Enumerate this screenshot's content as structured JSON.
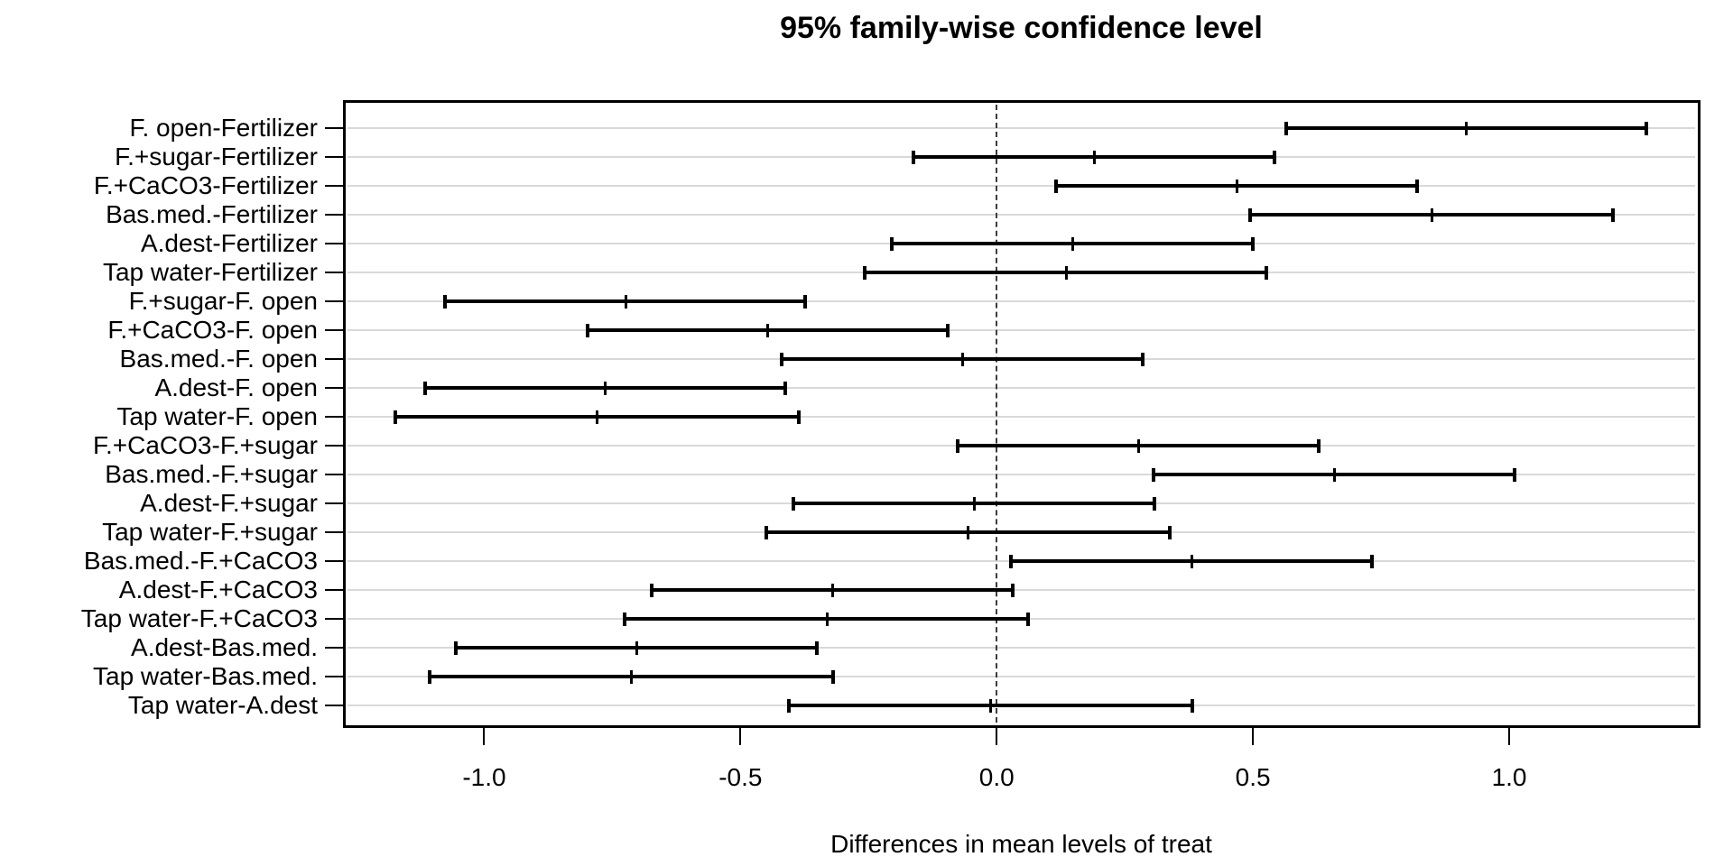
{
  "page": {
    "background": "#ffffff"
  },
  "chart_data": {
    "type": "scatter",
    "subtype": "tukey-hsd-family-wise-confidence-intervals",
    "title": "95% family-wise confidence level",
    "xlabel": "Differences in mean levels of treat",
    "ylabel": "",
    "xlim": [
      -1.272,
      1.368
    ],
    "x_ticks": [
      -1.0,
      -0.5,
      0.0,
      0.5,
      1.0
    ],
    "x_tick_labels": [
      "-1.0",
      "-0.5",
      "0.0",
      "0.5",
      "1.0"
    ],
    "zero_reference_line_x": 0.0,
    "grid": "horizontal gridline per comparison row",
    "legend": "none",
    "rows": [
      {
        "label": "F. open-Fertilizer",
        "lwr": 0.565,
        "diff": 0.915,
        "upr": 1.268
      },
      {
        "label": "F.+sugar-Fertilizer",
        "lwr": -0.162,
        "diff": 0.19,
        "upr": 0.542
      },
      {
        "label": "F.+CaCO3-Fertilizer",
        "lwr": 0.116,
        "diff": 0.468,
        "upr": 0.82
      },
      {
        "label": "Bas.med.-Fertilizer",
        "lwr": 0.495,
        "diff": 0.849,
        "upr": 1.203
      },
      {
        "label": "A.dest-Fertilizer",
        "lwr": -0.204,
        "diff": 0.148,
        "upr": 0.5
      },
      {
        "label": "Tap water-Fertilizer",
        "lwr": -0.257,
        "diff": 0.135,
        "upr": 0.527
      },
      {
        "label": "F.+sugar-F. open",
        "lwr": -1.077,
        "diff": -0.725,
        "upr": -0.373
      },
      {
        "label": "F.+CaCO3-F. open",
        "lwr": -0.799,
        "diff": -0.447,
        "upr": -0.095
      },
      {
        "label": "Bas.med.-F. open",
        "lwr": -0.419,
        "diff": -0.067,
        "upr": 0.285
      },
      {
        "label": "A.dest-F. open",
        "lwr": -1.116,
        "diff": -0.764,
        "upr": -0.412
      },
      {
        "label": "Tap water-F. open",
        "lwr": -1.174,
        "diff": -0.78,
        "upr": -0.386
      },
      {
        "label": "F.+CaCO3-F.+sugar",
        "lwr": -0.076,
        "diff": 0.276,
        "upr": 0.628
      },
      {
        "label": "Bas.med.-F.+sugar",
        "lwr": 0.306,
        "diff": 0.658,
        "upr": 1.01
      },
      {
        "label": "A.dest-F.+sugar",
        "lwr": -0.396,
        "diff": -0.044,
        "upr": 0.308
      },
      {
        "label": "Tap water-F.+sugar",
        "lwr": -0.45,
        "diff": -0.056,
        "upr": 0.338
      },
      {
        "label": "Bas.med.-F.+CaCO3",
        "lwr": 0.028,
        "diff": 0.38,
        "upr": 0.732
      },
      {
        "label": "A.dest-F.+CaCO3",
        "lwr": -0.673,
        "diff": -0.321,
        "upr": 0.031
      },
      {
        "label": "Tap water-F.+CaCO3",
        "lwr": -0.726,
        "diff": -0.332,
        "upr": 0.062
      },
      {
        "label": "A.dest-Bas.med.",
        "lwr": -1.055,
        "diff": -0.703,
        "upr": -0.351
      },
      {
        "label": "Tap water-Bas.med.",
        "lwr": -1.107,
        "diff": -0.713,
        "upr": -0.319
      },
      {
        "label": "Tap water-A.dest",
        "lwr": -0.406,
        "diff": -0.012,
        "upr": 0.382
      }
    ]
  },
  "colors": {
    "background": "#ffffff",
    "text": "#000000",
    "interval": "#000000",
    "plot_border": "#000000",
    "gridline": "#d9d9d9",
    "zero_line": "#3c3c3c"
  }
}
